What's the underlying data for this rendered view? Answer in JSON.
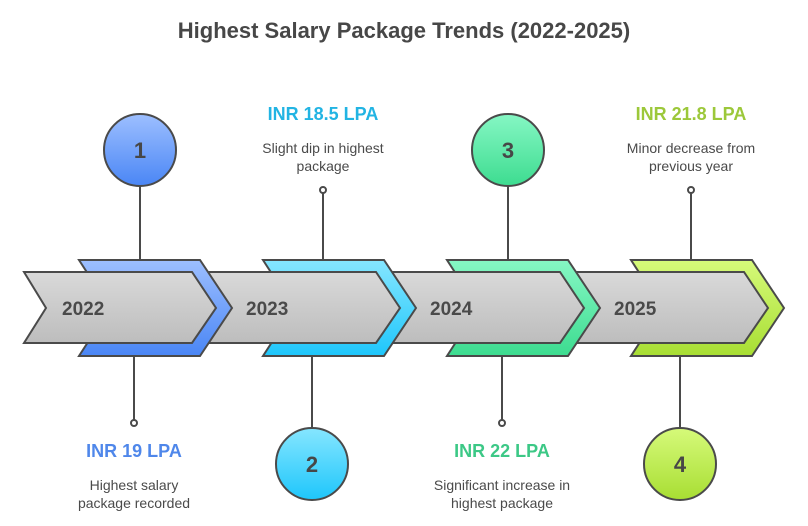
{
  "title": "Highest Salary Package Trends (2022-2025)",
  "steps": [
    {
      "number": "1",
      "year": "2022",
      "value": "INR 19 LPA",
      "description": "Highest salary package recorded",
      "color_top": "#9dbfff",
      "color_bottom": "#4a86f5",
      "text_color": "#4f87ea"
    },
    {
      "number": "2",
      "year": "2023",
      "value": "INR 18.5 LPA",
      "description": "Slight dip in highest package",
      "color_top": "#86e6ff",
      "color_bottom": "#1ec6fb",
      "text_color": "#22b4e3"
    },
    {
      "number": "3",
      "year": "2024",
      "value": "INR 22 LPA",
      "description": "Significant increase in highest package",
      "color_top": "#86f7c4",
      "color_bottom": "#3ddc90",
      "text_color": "#3cc886"
    },
    {
      "number": "4",
      "year": "2025",
      "value": "INR 21.8 LPA",
      "description": "Minor decrease from previous year",
      "color_top": "#d6fa7a",
      "color_bottom": "#a8de33",
      "text_color": "#9cc83a"
    }
  ]
}
